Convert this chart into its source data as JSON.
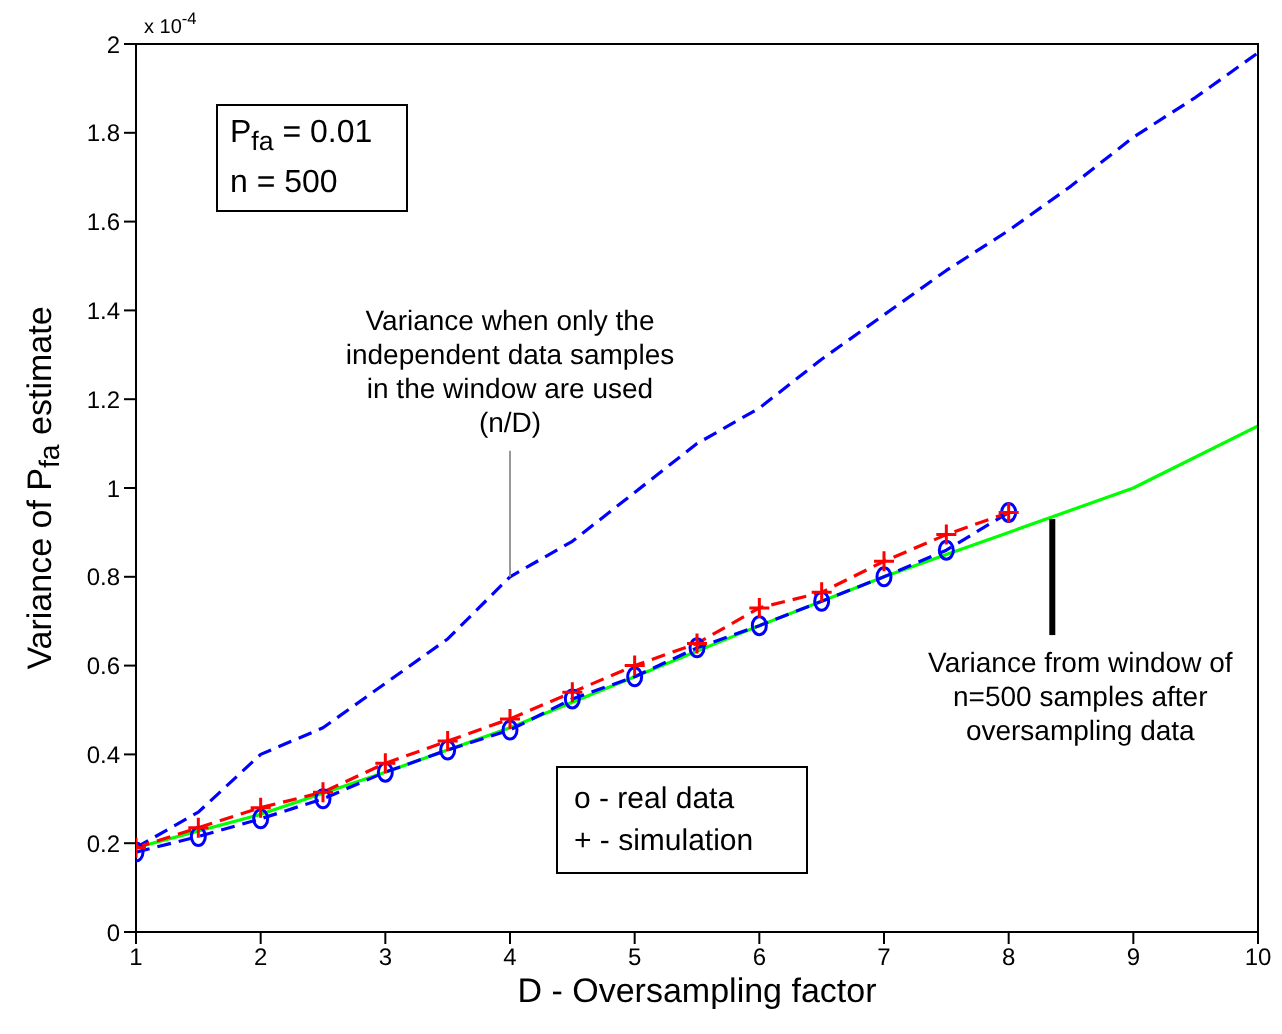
{
  "chart_data": {
    "type": "line",
    "xlabel": "D - Oversampling factor",
    "ylabel": "Variance of P$_{fa}$ estimate",
    "xlim": [
      1,
      10
    ],
    "xticks": [
      1,
      2,
      3,
      4,
      5,
      6,
      7,
      8,
      9,
      10
    ],
    "ylim": [
      0,
      2
    ],
    "yticks": [
      0,
      0.2,
      0.4,
      0.6,
      0.8,
      1,
      1.2,
      1.4,
      1.6,
      1.8,
      2
    ],
    "grid": false,
    "series": [
      {
        "color": "#0000ff",
        "line_style": "dashed",
        "marker": "none",
        "x": [
          1,
          1.5,
          2,
          2.5,
          3,
          3.5,
          4,
          4.5,
          5,
          5.5,
          6,
          6.5,
          7,
          7.5,
          8,
          8.5,
          9,
          9.5,
          10
        ],
        "values": [
          0.19,
          0.27,
          0.4,
          0.46,
          0.56,
          0.66,
          0.8,
          0.88,
          0.99,
          1.1,
          1.18,
          1.29,
          1.39,
          1.49,
          1.58,
          1.68,
          1.79,
          1.88,
          1.98
        ]
      },
      {
        "color": "#00ff00",
        "line_style": "solid",
        "marker": "none",
        "x": [
          1,
          2,
          3,
          4,
          5,
          6,
          7,
          7.5,
          8,
          9,
          10
        ],
        "values": [
          0.19,
          0.265,
          0.36,
          0.46,
          0.575,
          0.69,
          0.8,
          0.85,
          0.9,
          1.0,
          1.14
        ]
      },
      {
        "color": "#0000ff",
        "line_style": "dashed",
        "marker": "circle",
        "x": [
          1,
          1.5,
          2,
          2.5,
          3,
          3.5,
          4,
          4.5,
          5,
          5.5,
          6,
          6.5,
          7,
          7.5,
          8
        ],
        "values": [
          0.18,
          0.215,
          0.255,
          0.3,
          0.36,
          0.41,
          0.455,
          0.525,
          0.575,
          0.64,
          0.69,
          0.745,
          0.8,
          0.86,
          0.945
        ]
      },
      {
        "color": "#ff0000",
        "line_style": "dashed",
        "marker": "cross",
        "x": [
          1,
          1.5,
          2,
          2.5,
          3,
          3.5,
          4,
          4.5,
          5,
          5.5,
          6,
          6.5,
          7,
          7.5,
          8
        ],
        "values": [
          0.19,
          0.235,
          0.28,
          0.315,
          0.38,
          0.43,
          0.48,
          0.54,
          0.6,
          0.65,
          0.73,
          0.765,
          0.835,
          0.895,
          0.945
        ]
      }
    ],
    "annotations": [
      "x 10$^{-4}$",
      "P$_{fa}$ = 0.01",
      "n = 500",
      "o - real data",
      "+ - simulation",
      {
        "text": "Variance when only the independent data samples in the window are used (n/D)",
        "x": 4,
        "y": 0.8
      },
      {
        "text": "Variance from window of n=500 samples after oversampling data",
        "x": 8.35,
        "y": 0.93
      }
    ]
  }
}
